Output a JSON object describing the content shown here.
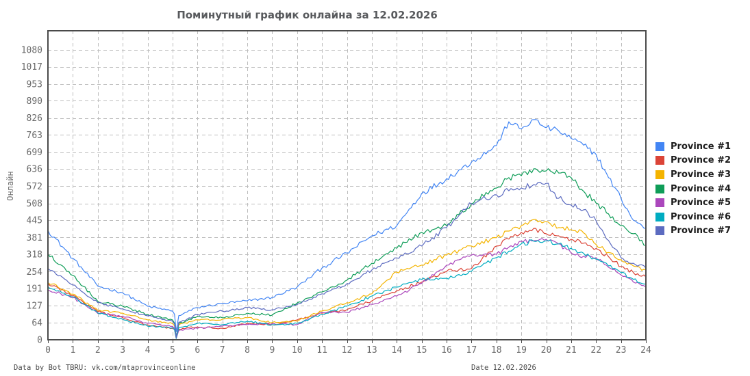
{
  "footer": {
    "left": "Data by Bot TBRU: vk.com/mtaprovinceonline",
    "right": "Date 12.02.2026"
  },
  "chart_data": {
    "type": "line",
    "title": "Поминутный график онлайна за 12.02.2026",
    "ylabel": "Онлайн",
    "xlabel": "",
    "xlim": [
      0,
      24
    ],
    "ylim": [
      0,
      1080
    ],
    "grid": "dashed",
    "legend_position": "right",
    "x_ticks": [
      0,
      1,
      2,
      3,
      4,
      5,
      6,
      7,
      8,
      9,
      10,
      11,
      12,
      13,
      14,
      15,
      16,
      17,
      18,
      19,
      20,
      21,
      22,
      23,
      24
    ],
    "y_ticks": [
      0,
      64,
      127,
      191,
      254,
      318,
      381,
      445,
      508,
      572,
      636,
      699,
      763,
      826,
      890,
      953,
      1017,
      1080
    ],
    "x": [
      0,
      1,
      2,
      3,
      4,
      5,
      5.08,
      5.15,
      5.25,
      6,
      7,
      8,
      9,
      10,
      11,
      12,
      13,
      14,
      15,
      16,
      17,
      18,
      18.5,
      19,
      19.5,
      20,
      20.5,
      21,
      21.5,
      22,
      22.5,
      23,
      23.5,
      24
    ],
    "series": [
      {
        "name": "Province #1",
        "color": "#4285F4",
        "values": [
          408,
          303,
          200,
          175,
          125,
          107,
          95,
          30,
          90,
          120,
          135,
          145,
          158,
          196,
          267,
          323,
          387,
          425,
          545,
          600,
          662,
          723,
          812,
          785,
          820,
          790,
          778,
          750,
          725,
          690,
          604,
          527,
          445,
          415
        ]
      },
      {
        "name": "Province #2",
        "color": "#DB4437",
        "values": [
          210,
          165,
          105,
          82,
          56,
          43,
          38,
          5,
          40,
          48,
          43,
          61,
          56,
          74,
          99,
          112,
          145,
          183,
          215,
          255,
          265,
          349,
          375,
          400,
          415,
          395,
          387,
          374,
          360,
          340,
          310,
          273,
          250,
          234
        ]
      },
      {
        "name": "Province #3",
        "color": "#F4B400",
        "values": [
          214,
          170,
          110,
          99,
          74,
          60,
          52,
          8,
          55,
          74,
          76,
          82,
          64,
          69,
          107,
          138,
          171,
          252,
          278,
          316,
          349,
          380,
          405,
          425,
          448,
          440,
          418,
          410,
          398,
          355,
          325,
          298,
          275,
          260
        ]
      },
      {
        "name": "Province #4",
        "color": "#0F9D58",
        "values": [
          320,
          240,
          143,
          125,
          94,
          74,
          62,
          10,
          60,
          87,
          82,
          99,
          92,
          137,
          178,
          222,
          285,
          341,
          400,
          425,
          507,
          565,
          604,
          611,
          637,
          629,
          621,
          604,
          553,
          509,
          469,
          425,
          395,
          352
        ]
      },
      {
        "name": "Province #5",
        "color": "#AB47BC",
        "values": [
          186,
          158,
          98,
          87,
          61,
          50,
          42,
          5,
          35,
          43,
          51,
          56,
          60,
          56,
          102,
          102,
          132,
          163,
          210,
          278,
          316,
          318,
          345,
          367,
          369,
          374,
          357,
          323,
          311,
          306,
          270,
          242,
          215,
          196
        ]
      },
      {
        "name": "Province #6",
        "color": "#00ACC1",
        "values": [
          196,
          160,
          100,
          76,
          51,
          45,
          38,
          5,
          45,
          61,
          56,
          69,
          56,
          61,
          94,
          125,
          163,
          196,
          225,
          229,
          255,
          306,
          330,
          357,
          367,
          369,
          357,
          341,
          322,
          300,
          275,
          250,
          225,
          207
        ]
      },
      {
        "name": "Province #7",
        "color": "#5C6BC0",
        "values": [
          265,
          204,
          138,
          115,
          89,
          69,
          58,
          8,
          65,
          94,
          107,
          120,
          112,
          132,
          171,
          209,
          260,
          305,
          349,
          418,
          507,
          540,
          555,
          565,
          578,
          583,
          527,
          502,
          484,
          443,
          370,
          306,
          285,
          267
        ]
      }
    ]
  }
}
